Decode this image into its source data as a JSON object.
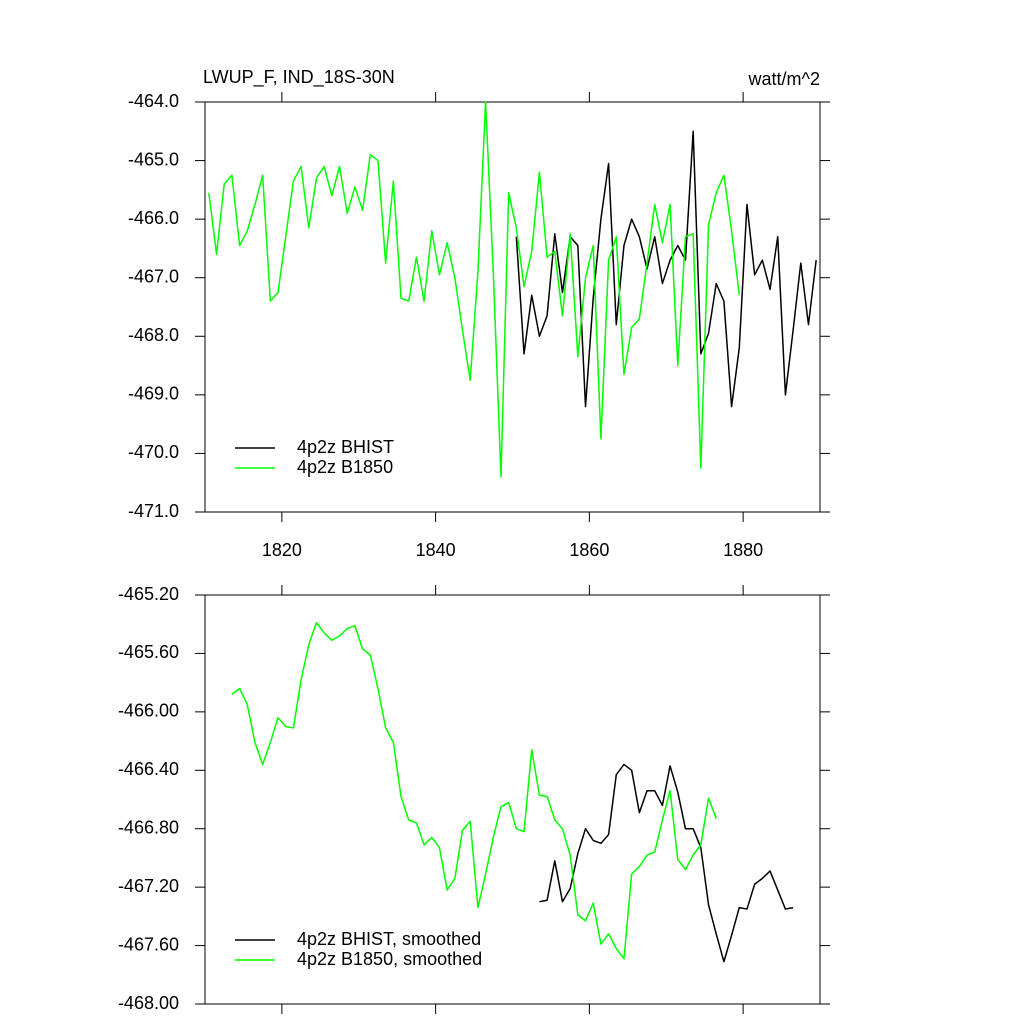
{
  "chart_data": [
    {
      "type": "line",
      "title": "LWUP_F, IND_18S-30N",
      "units": "watt/m^2",
      "x": [
        1810.5,
        1811.5,
        1812.5,
        1813.5,
        1814.5,
        1815.5,
        1816.5,
        1817.5,
        1818.5,
        1819.5,
        1820.5,
        1821.5,
        1822.5,
        1823.5,
        1824.5,
        1825.5,
        1826.5,
        1827.5,
        1828.5,
        1829.5,
        1830.5,
        1831.5,
        1832.5,
        1833.5,
        1834.5,
        1835.5,
        1836.5,
        1837.5,
        1838.5,
        1839.5,
        1840.5,
        1841.5,
        1842.5,
        1843.5,
        1844.5,
        1845.5,
        1846.5,
        1847.5,
        1848.5,
        1849.5,
        1850.5,
        1851.5,
        1852.5,
        1853.5,
        1854.5,
        1855.5,
        1856.5,
        1857.5,
        1858.5,
        1859.5,
        1860.5,
        1861.5,
        1862.5,
        1863.5,
        1864.5,
        1865.5,
        1866.5,
        1867.5,
        1868.5,
        1869.5,
        1870.5,
        1871.5,
        1872.5,
        1873.5,
        1874.5,
        1875.5,
        1876.5,
        1877.5,
        1878.5,
        1879.5,
        1880.5,
        1881.5,
        1882.5,
        1883.5,
        1884.5,
        1885.5,
        1886.5,
        1887.5,
        1888.5,
        1889.5
      ],
      "xlim": [
        1810,
        1890
      ],
      "xticks": [
        1820,
        1840,
        1860,
        1880
      ],
      "ylim": [
        -471,
        -464
      ],
      "yticks": [
        {
          "value": -471,
          "label": "-471.0"
        },
        {
          "value": -470,
          "label": "-470.0"
        },
        {
          "value": -469,
          "label": "-469.0"
        },
        {
          "value": -468,
          "label": "-468.0"
        },
        {
          "value": -467,
          "label": "-467.0"
        },
        {
          "value": -466,
          "label": "-466.0"
        },
        {
          "value": -465,
          "label": "-465.0"
        },
        {
          "value": -464,
          "label": "-464.0"
        }
      ],
      "legend": "lower left",
      "series": [
        {
          "name": "4p2z BHIST",
          "color": "#000000",
          "values": [
            null,
            null,
            null,
            null,
            null,
            null,
            null,
            null,
            null,
            null,
            null,
            null,
            null,
            null,
            null,
            null,
            null,
            null,
            null,
            null,
            null,
            null,
            null,
            null,
            null,
            null,
            null,
            null,
            null,
            null,
            null,
            null,
            null,
            null,
            null,
            null,
            null,
            null,
            null,
            null,
            -466.3,
            -468.3,
            -467.3,
            -468.0,
            -467.65,
            -466.25,
            -467.25,
            -466.3,
            -466.45,
            -469.2,
            -467.35,
            -466.0,
            -465.05,
            -467.8,
            -466.45,
            -466.0,
            -466.3,
            -466.85,
            -466.3,
            -467.1,
            -466.7,
            -466.45,
            -466.7,
            -464.5,
            -468.3,
            -467.95,
            -467.1,
            -467.4,
            -469.2,
            -468.2,
            -465.75,
            -466.95,
            -466.7,
            -467.2,
            -466.3,
            -469.0,
            -467.9,
            -466.75,
            -467.8,
            -466.7
          ]
        },
        {
          "name": "4p2z B1850",
          "color": "#00ff00",
          "values": [
            -465.55,
            -466.6,
            -465.4,
            -465.25,
            -466.45,
            -466.2,
            -465.75,
            -465.25,
            -467.4,
            -467.25,
            -466.3,
            -465.35,
            -465.1,
            -466.15,
            -465.3,
            -465.1,
            -465.6,
            -465.1,
            -465.9,
            -465.45,
            -465.85,
            -464.9,
            -465.0,
            -466.75,
            -465.35,
            -467.35,
            -467.4,
            -466.65,
            -467.4,
            -466.2,
            -466.95,
            -466.4,
            -467.0,
            -467.9,
            -468.75,
            -466.9,
            -464.0,
            -466.9,
            -470.4,
            -465.55,
            -466.15,
            -467.15,
            -466.55,
            -465.2,
            -466.65,
            -466.55,
            -467.65,
            -466.25,
            -468.35,
            -467.0,
            -466.45,
            -469.75,
            -466.7,
            -466.3,
            -468.65,
            -467.85,
            -467.7,
            -466.75,
            -465.75,
            -466.4,
            -465.75,
            -468.5,
            -466.3,
            -466.25,
            -470.25,
            -466.1,
            -465.55,
            -465.25,
            -466.2,
            -467.3,
            null,
            null,
            null,
            null,
            null,
            null,
            null,
            null,
            null,
            null
          ]
        }
      ]
    },
    {
      "type": "line",
      "x": [
        1810.5,
        1811.5,
        1812.5,
        1813.5,
        1814.5,
        1815.5,
        1816.5,
        1817.5,
        1818.5,
        1819.5,
        1820.5,
        1821.5,
        1822.5,
        1823.5,
        1824.5,
        1825.5,
        1826.5,
        1827.5,
        1828.5,
        1829.5,
        1830.5,
        1831.5,
        1832.5,
        1833.5,
        1834.5,
        1835.5,
        1836.5,
        1837.5,
        1838.5,
        1839.5,
        1840.5,
        1841.5,
        1842.5,
        1843.5,
        1844.5,
        1845.5,
        1846.5,
        1847.5,
        1848.5,
        1849.5,
        1850.5,
        1851.5,
        1852.5,
        1853.5,
        1854.5,
        1855.5,
        1856.5,
        1857.5,
        1858.5,
        1859.5,
        1860.5,
        1861.5,
        1862.5,
        1863.5,
        1864.5,
        1865.5,
        1866.5,
        1867.5,
        1868.5,
        1869.5,
        1870.5,
        1871.5,
        1872.5,
        1873.5,
        1874.5,
        1875.5,
        1876.5,
        1877.5,
        1878.5,
        1879.5,
        1880.5,
        1881.5,
        1882.5,
        1883.5,
        1884.5,
        1885.5,
        1886.5,
        1887.5,
        1888.5,
        1889.5
      ],
      "xlim": [
        1810,
        1890
      ],
      "ylim": [
        -468,
        -465.2
      ],
      "yticks": [
        {
          "value": -468,
          "label": "-468.00"
        },
        {
          "value": -467.6,
          "label": "-467.60"
        },
        {
          "value": -467.2,
          "label": "-467.20"
        },
        {
          "value": -466.8,
          "label": "-466.80"
        },
        {
          "value": -466.4,
          "label": "-466.40"
        },
        {
          "value": -466,
          "label": "-466.00"
        },
        {
          "value": -465.6,
          "label": "-465.60"
        },
        {
          "value": -465.2,
          "label": "-465.20"
        }
      ],
      "legend": "lower left",
      "series": [
        {
          "name": "4p2z BHIST, smoothed",
          "color": "#000000",
          "values": [
            null,
            null,
            null,
            null,
            null,
            null,
            null,
            null,
            null,
            null,
            null,
            null,
            null,
            null,
            null,
            null,
            null,
            null,
            null,
            null,
            null,
            null,
            null,
            null,
            null,
            null,
            null,
            null,
            null,
            null,
            null,
            null,
            null,
            null,
            null,
            null,
            null,
            null,
            null,
            null,
            null,
            null,
            null,
            -467.3,
            -467.29,
            -467.02,
            -467.3,
            -467.21,
            -466.97,
            -466.8,
            -466.88,
            -466.9,
            -466.84,
            -466.43,
            -466.36,
            -466.4,
            -466.69,
            -466.54,
            -466.54,
            -466.64,
            -466.37,
            -466.55,
            -466.8,
            -466.8,
            -466.93,
            -467.32,
            -467.52,
            -467.71,
            -467.53,
            -467.34,
            -467.35,
            -467.18,
            -467.14,
            -467.09,
            -467.22,
            -467.35,
            -467.34,
            null,
            null,
            null
          ]
        },
        {
          "name": "4p2z B1850, smoothed",
          "color": "#00ff00",
          "values": [
            null,
            null,
            null,
            -465.88,
            -465.84,
            -465.95,
            -466.21,
            -466.36,
            -466.21,
            -466.04,
            -466.1,
            -466.11,
            -465.78,
            -465.54,
            -465.39,
            -465.46,
            -465.51,
            -465.48,
            -465.43,
            -465.41,
            -465.57,
            -465.61,
            -465.84,
            -466.11,
            -466.21,
            -466.58,
            -466.74,
            -466.76,
            -466.91,
            -466.86,
            -466.93,
            -467.22,
            -467.14,
            -466.81,
            -466.75,
            -467.34,
            -467.11,
            -466.86,
            -466.65,
            -466.62,
            -466.8,
            -466.82,
            -466.26,
            -466.57,
            -466.58,
            -466.74,
            -466.8,
            -466.98,
            -467.39,
            -467.43,
            -467.31,
            -467.59,
            -467.52,
            -467.62,
            -467.69,
            -467.11,
            -467.06,
            -466.98,
            -466.96,
            -466.74,
            -466.54,
            -467.01,
            -467.08,
            -466.98,
            -466.91,
            -466.59,
            -466.73,
            null,
            null,
            null,
            null,
            null,
            null,
            null,
            null,
            null,
            null,
            null,
            null,
            null
          ]
        }
      ]
    }
  ]
}
